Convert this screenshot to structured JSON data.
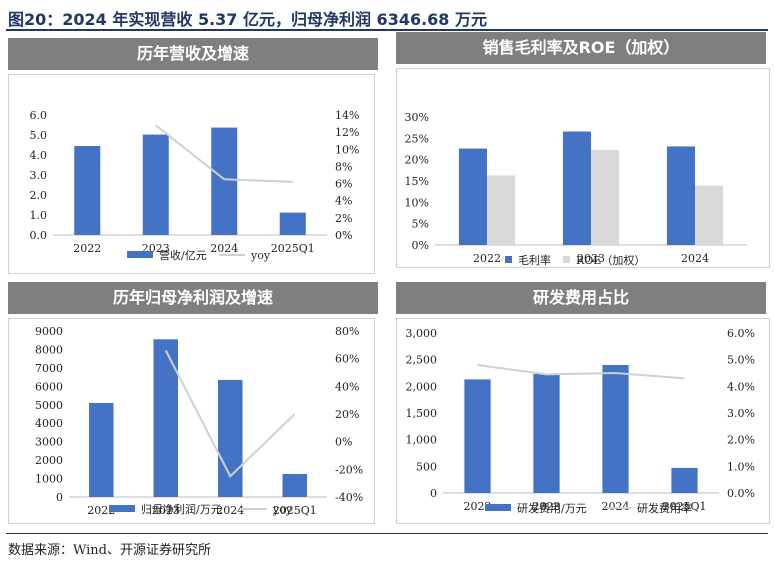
{
  "figure_title": "图20：2024 年实现营收 5.37 亿元，归母净利润 6346.68 万元",
  "source": "数据来源：Wind、开源证券研究所",
  "colors": {
    "bar": "#4472c4",
    "bar2": "#d9d9d9",
    "line": "#d0d0d0",
    "header": "#7f7f7f",
    "title": "#1f3864"
  },
  "panels": [
    {
      "title": "历年营收及增速"
    },
    {
      "title": "销售毛利率及ROE（加权）"
    },
    {
      "title": "历年归母净利润及增速"
    },
    {
      "title": "研发费用占比"
    }
  ],
  "chart_data": [
    {
      "type": "bar",
      "title": "历年营收及增速",
      "categories": [
        "2022",
        "2023",
        "2024",
        "2025Q1"
      ],
      "series": [
        {
          "name": "营收/亿元",
          "values": [
            4.45,
            5.02,
            5.37,
            1.12
          ],
          "axis": "left"
        },
        {
          "name": "yoy",
          "type": "line",
          "values": [
            null,
            12.8,
            6.5,
            6.2
          ],
          "axis": "right"
        }
      ],
      "ylim": [
        0,
        6.0
      ],
      "yticks": [
        "0.0",
        "1.0",
        "2.0",
        "3.0",
        "4.0",
        "5.0",
        "6.0"
      ],
      "y2lim": [
        0,
        14
      ],
      "y2ticks": [
        "0%",
        "2%",
        "4%",
        "6%",
        "8%",
        "10%",
        "12%",
        "14%"
      ],
      "legend": "bottom"
    },
    {
      "type": "bar",
      "title": "销售毛利率及ROE（加权）",
      "categories": [
        "2022",
        "2023",
        "2024"
      ],
      "series": [
        {
          "name": "毛利率",
          "values": [
            22.6,
            26.6,
            23.1
          ]
        },
        {
          "name": "ROE（加权）",
          "values": [
            16.3,
            22.3,
            13.9
          ]
        }
      ],
      "ylim": [
        0,
        30
      ],
      "yticks": [
        "0%",
        "5%",
        "10%",
        "15%",
        "20%",
        "25%",
        "30%"
      ],
      "legend": "bottom"
    },
    {
      "type": "bar",
      "title": "历年归母净利润及增速",
      "categories": [
        "2022",
        "2023",
        "2024",
        "2025Q1"
      ],
      "series": [
        {
          "name": "归母净利润/万元",
          "values": [
            5100,
            8550,
            6347,
            1250
          ],
          "axis": "left"
        },
        {
          "name": "yoy",
          "type": "line",
          "values": [
            null,
            66,
            -25,
            20
          ],
          "axis": "right"
        }
      ],
      "ylim": [
        0,
        9000
      ],
      "yticks": [
        "0",
        "1000",
        "2000",
        "3000",
        "4000",
        "5000",
        "6000",
        "7000",
        "8000",
        "9000"
      ],
      "y2lim": [
        -40,
        80
      ],
      "y2ticks": [
        "-40%",
        "-20%",
        "0%",
        "20%",
        "40%",
        "60%",
        "80%"
      ],
      "legend": "bottom"
    },
    {
      "type": "bar",
      "title": "研发费用占比",
      "categories": [
        "2022",
        "2023",
        "2024",
        "2025Q1"
      ],
      "series": [
        {
          "name": "研发费用/万元",
          "values": [
            2130,
            2230,
            2400,
            470
          ],
          "axis": "left"
        },
        {
          "name": "研发费用率",
          "type": "line",
          "values": [
            4.8,
            4.45,
            4.5,
            4.3
          ],
          "axis": "right"
        }
      ],
      "ylim": [
        0,
        3000
      ],
      "yticks": [
        "0",
        "500",
        "1,000",
        "1,500",
        "2,000",
        "2,500",
        "3,000"
      ],
      "y2lim": [
        0,
        6
      ],
      "y2ticks": [
        "0.0%",
        "1.0%",
        "2.0%",
        "3.0%",
        "4.0%",
        "5.0%",
        "6.0%"
      ],
      "legend": "bottom"
    }
  ]
}
